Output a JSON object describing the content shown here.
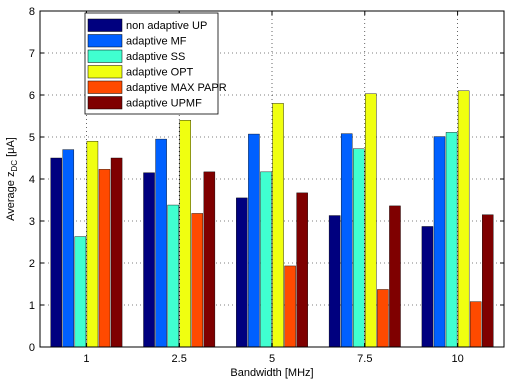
{
  "chart_data": {
    "type": "bar",
    "categories": [
      "1",
      "2.5",
      "5",
      "7.5",
      "10"
    ],
    "series": [
      {
        "name": "non adaptive UP",
        "color": "#00007f",
        "values": [
          4.5,
          4.15,
          3.55,
          3.13,
          2.87
        ]
      },
      {
        "name": "adaptive MF",
        "color": "#0060ff",
        "values": [
          4.7,
          4.95,
          5.07,
          5.08,
          5.01
        ]
      },
      {
        "name": "adaptive SS",
        "color": "#40ffd0",
        "values": [
          2.63,
          3.38,
          4.17,
          4.72,
          5.11
        ]
      },
      {
        "name": "adaptive OPT",
        "color": "#f0ff10",
        "values": [
          4.9,
          5.4,
          5.8,
          6.03,
          6.1
        ]
      },
      {
        "name": "adaptive MAX PAPR",
        "color": "#ff4a00",
        "values": [
          4.23,
          3.18,
          1.93,
          1.37,
          1.08
        ]
      },
      {
        "name": "adaptive UPMF",
        "color": "#7f0000",
        "values": [
          4.5,
          4.17,
          3.67,
          3.36,
          3.15
        ]
      }
    ],
    "xlabel": "Bandwidth [MHz]",
    "ylabel_main": "Average z",
    "ylabel_sub": "DC",
    "ylabel_unit": " [μA]",
    "ylim": [
      0,
      8
    ],
    "yticks": [
      "0",
      "1",
      "2",
      "3",
      "4",
      "5",
      "6",
      "7",
      "8"
    ],
    "grid": true,
    "legend_position": "top-left"
  }
}
